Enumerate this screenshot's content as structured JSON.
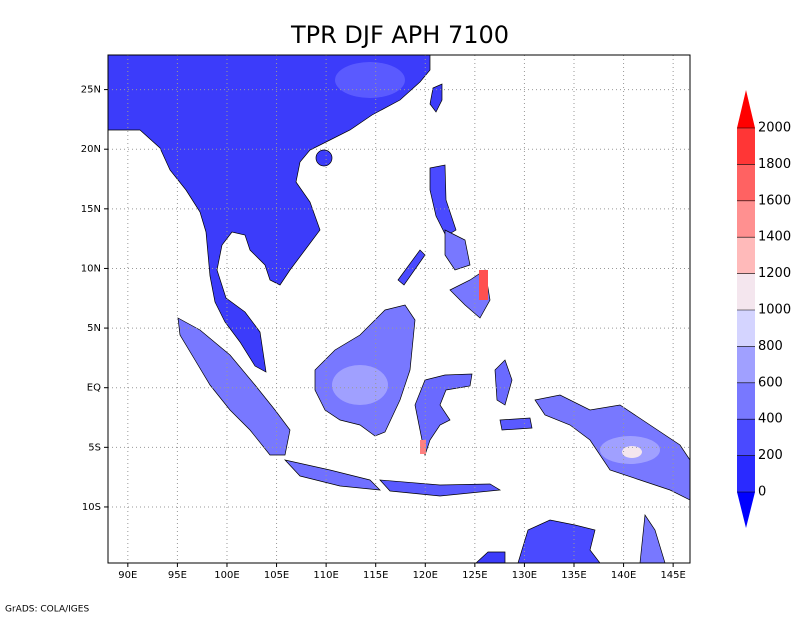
{
  "title": "TPR DJF APH 7100",
  "map": {
    "lon_range": [
      88,
      146.7
    ],
    "lat_range": [
      -14.7,
      27.9
    ],
    "lon_ticks": [
      {
        "value": 90,
        "label": "90E"
      },
      {
        "value": 95,
        "label": "95E"
      },
      {
        "value": 100,
        "label": "100E"
      },
      {
        "value": 105,
        "label": "105E"
      },
      {
        "value": 110,
        "label": "110E"
      },
      {
        "value": 115,
        "label": "115E"
      },
      {
        "value": 120,
        "label": "120E"
      },
      {
        "value": 125,
        "label": "125E"
      },
      {
        "value": 130,
        "label": "130E"
      },
      {
        "value": 135,
        "label": "135E"
      },
      {
        "value": 140,
        "label": "140E"
      },
      {
        "value": 145,
        "label": "145E"
      }
    ],
    "lat_ticks": [
      {
        "value": -10,
        "label": "10S"
      },
      {
        "value": -5,
        "label": "5S"
      },
      {
        "value": 0,
        "label": "EQ"
      },
      {
        "value": 5,
        "label": "5N"
      },
      {
        "value": 10,
        "label": "10N"
      },
      {
        "value": 15,
        "label": "15N"
      },
      {
        "value": 20,
        "label": "20N"
      },
      {
        "value": 25,
        "label": "25N"
      }
    ]
  },
  "colorbar": {
    "levels": [
      0,
      200,
      400,
      600,
      800,
      1000,
      1200,
      1400,
      1600,
      1800,
      2000
    ],
    "colors": [
      "#2a2aff",
      "#4a4aff",
      "#7878ff",
      "#a0a0ff",
      "#d4d4ff",
      "#f4e6ee",
      "#ffbaba",
      "#ff9090",
      "#ff6262",
      "#ff3636"
    ],
    "under_color": "#0000ff",
    "over_color": "#ff0000"
  },
  "credit": "GrADS: COLA/IGES"
}
